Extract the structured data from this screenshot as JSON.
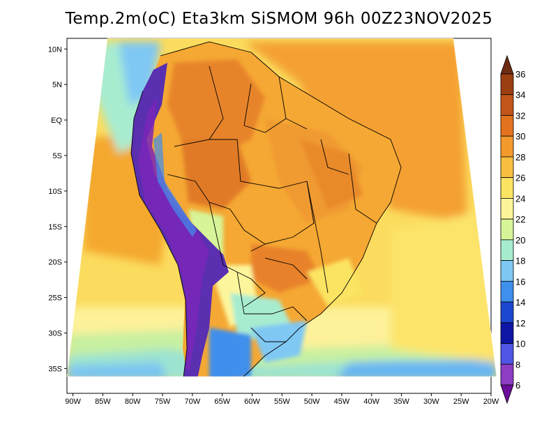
{
  "title": "Temp.2m(oC) Eta3km SiSMOM 96h 00Z23NOV2025",
  "map": {
    "lat_labels": [
      "10N",
      "5N",
      "EQ",
      "5S",
      "10S",
      "15S",
      "20S",
      "25S",
      "30S",
      "35S"
    ],
    "lon_labels": [
      "90W",
      "85W",
      "80W",
      "75W",
      "70W",
      "65W",
      "60W",
      "55W",
      "50W",
      "45W",
      "40W",
      "35W",
      "30W",
      "25W",
      "20W"
    ],
    "lon_range": [
      -91,
      -20
    ],
    "lat_range": [
      -38.5,
      11.5
    ]
  },
  "colorbar": {
    "labels": [
      "36",
      "34",
      "32",
      "30",
      "28",
      "26",
      "24",
      "22",
      "20",
      "18",
      "16",
      "14",
      "12",
      "10",
      "8",
      "6"
    ],
    "colors": [
      "#6e2c14",
      "#9b3f12",
      "#c2561a",
      "#e3721e",
      "#f39a2c",
      "#f8be40",
      "#fbe462",
      "#fdf59b",
      "#d7f598",
      "#a8ecd0",
      "#7fc8f4",
      "#3f8fec",
      "#1b48cf",
      "#0e15a4",
      "#5055e6",
      "#8d3cc4",
      "#6a0d9b"
    ]
  }
}
